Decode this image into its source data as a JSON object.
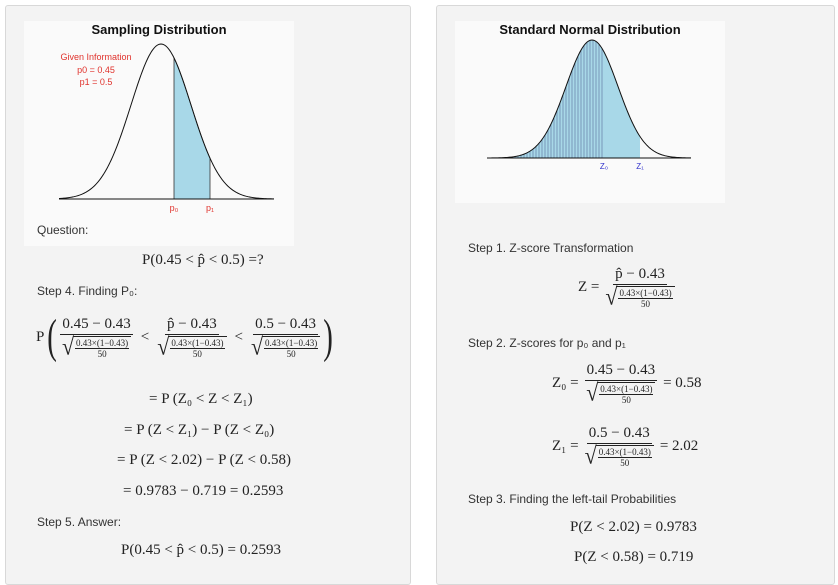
{
  "left": {
    "plot": {
      "title": "Sampling Distribution",
      "given_label": "Given Information",
      "p0_text": "p0 = 0.45",
      "p1_text": "p1 = 0.5",
      "p0_axis": "p₀",
      "p1_axis": "p₁"
    },
    "question_label": "Question:",
    "question_expr": "P(0.45 < p̂ < 0.5) =?",
    "step4_label": "Step 4. Finding P₀:",
    "step4": {
      "p": "P",
      "f1_num": "0.45 − 0.43",
      "f2_num": "p̂ − 0.43",
      "f3_num": "0.5 − 0.43",
      "sqrt_top": "0.43×(1−0.43)",
      "sqrt_bot": "50",
      "lt": "<"
    },
    "eq1": "= P (Z₀ < Z < Z₁)",
    "eq2": "= P (Z < Z₁) − P (Z < Z₀)",
    "eq3": "= P (Z < 2.02) − P (Z < 0.58)",
    "eq4": "= 0.9783 − 0.719 = 0.2593",
    "step5_label": "Step 5. Answer:",
    "answer": "P(0.45 < p̂ < 0.5) = 0.2593"
  },
  "right": {
    "plot": {
      "title": "Standard Normal Distribution",
      "z0_axis": "Z₀",
      "z1_axis": "Z₁"
    },
    "step1_label": "Step 1. Z-score Transformation",
    "z_lhs": "Z =",
    "z_num": "p̂ − 0.43",
    "sqrt_top": "0.43×(1−0.43)",
    "sqrt_bot": "50",
    "step2_label": "Step 2. Z-scores for p₀ and p₁",
    "z0_lhs": "Z₀ =",
    "z0_num": "0.45 − 0.43",
    "z0_val": "= 0.58",
    "z1_lhs": "Z₁ =",
    "z1_num": "0.5 − 0.43",
    "z1_val": "= 2.02",
    "step3_label": "Step 3. Finding the left-tail Probabilities",
    "prob1": "P(Z < 2.02) = 0.9783",
    "prob2": "P(Z < 0.58) = 0.719"
  },
  "colors": {
    "shade": "#a8d8e8",
    "given": "#e0332d",
    "axis_label": "#3333cc"
  }
}
